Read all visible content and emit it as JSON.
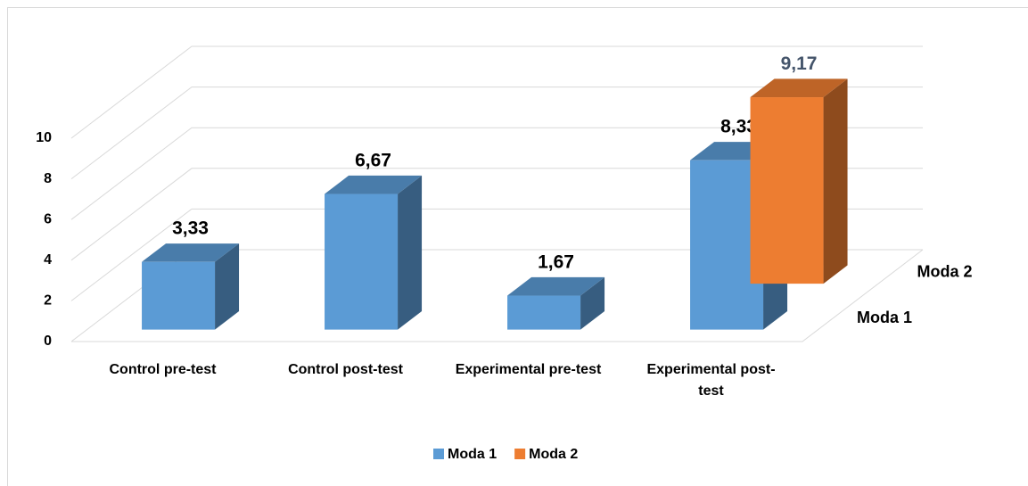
{
  "chart_data": {
    "type": "bar3d",
    "categories": [
      "Control pre-test",
      "Control post-test",
      "Experimental pre-test",
      "Experimental post-test"
    ],
    "series": [
      {
        "name": "Moda 1",
        "color": "#5b9bd5",
        "values": [
          3.33,
          6.67,
          1.67,
          8.33
        ],
        "value_labels": [
          "3,33",
          "6,67",
          "1,67",
          "8,33"
        ]
      },
      {
        "name": "Moda 2",
        "color": "#ed7d31",
        "values": [
          null,
          null,
          null,
          9.17
        ],
        "value_labels": [
          null,
          null,
          null,
          "9,17"
        ]
      }
    ],
    "ylim": [
      0,
      10
    ],
    "yticks": [
      0,
      2,
      4,
      6,
      8,
      10
    ],
    "grid": true,
    "legend": "bottom"
  }
}
